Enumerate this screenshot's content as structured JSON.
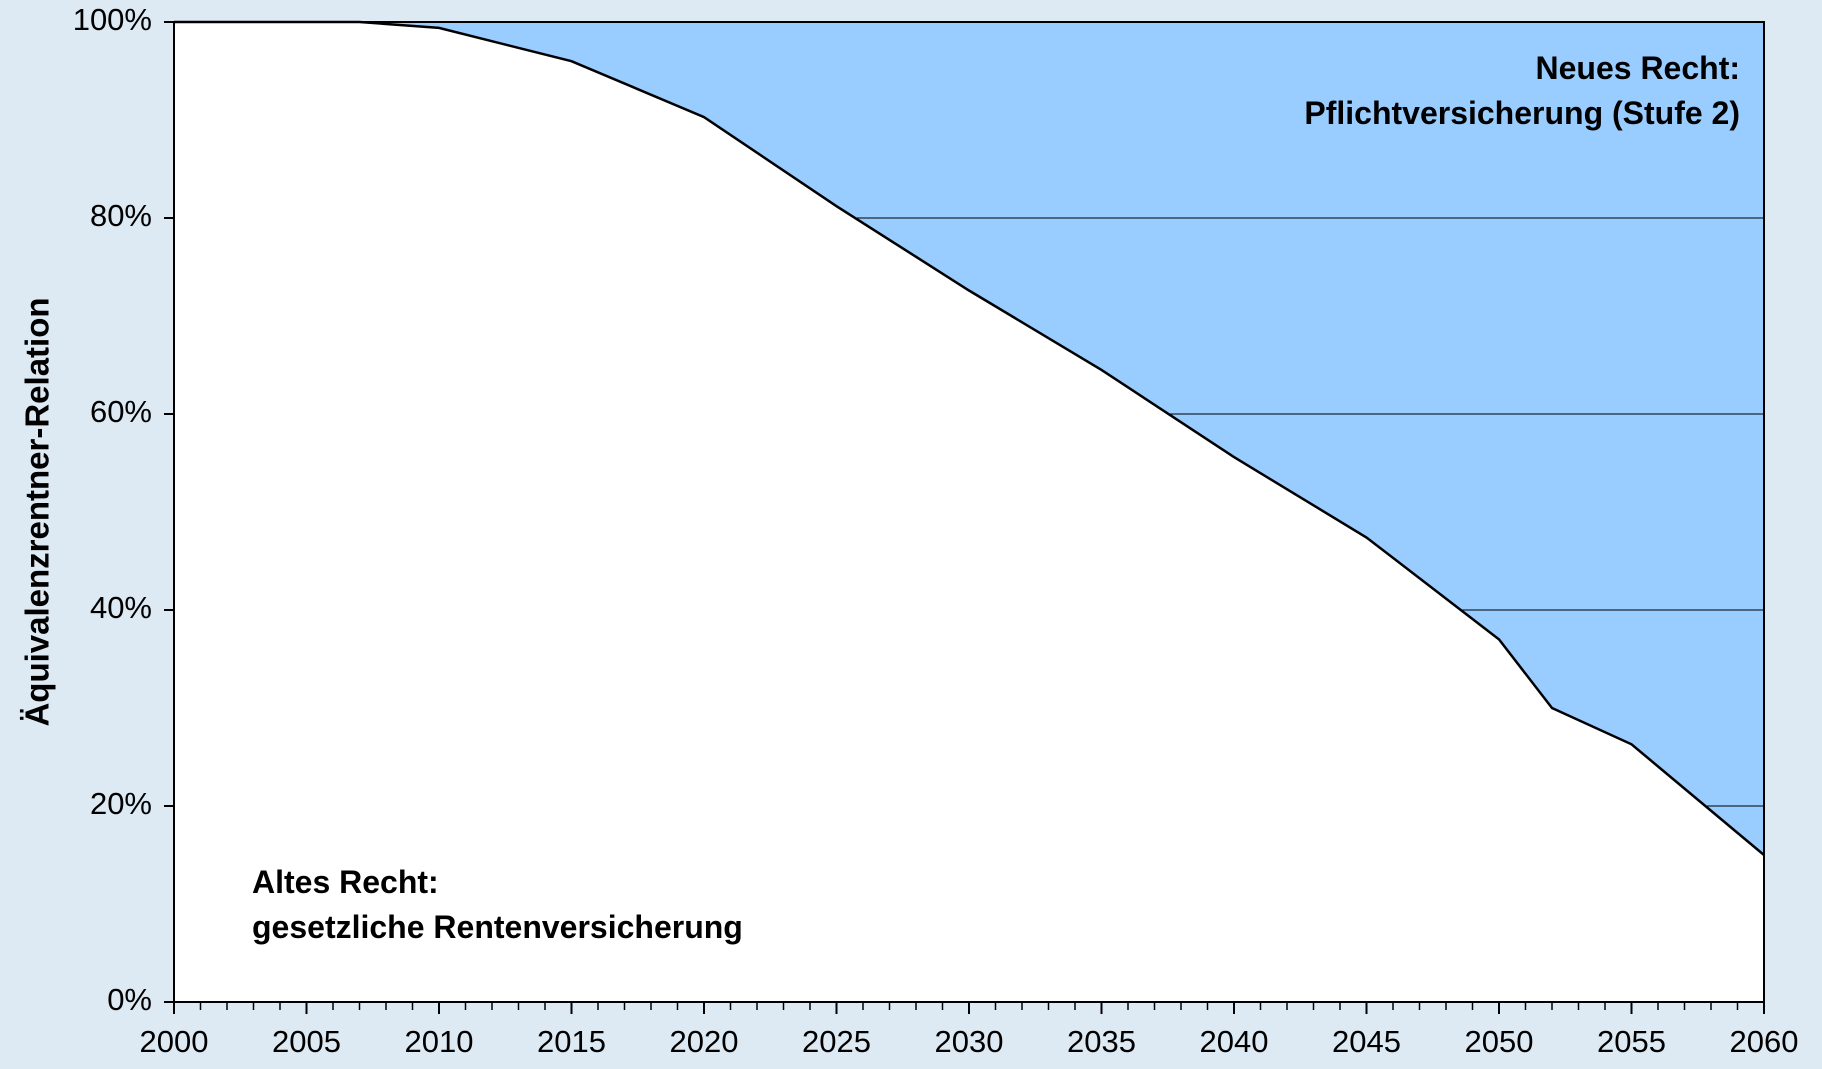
{
  "chart_data": {
    "type": "area",
    "y_label": "Äquivalenzrentner-Relation",
    "annotations": [
      {
        "lines": [
          "Neues Recht:",
          "Pflichtversicherung (Stufe 2)"
        ],
        "corner": "top-right"
      },
      {
        "lines": [
          "Altes Recht:",
          "gesetzliche Rentenversicherung"
        ],
        "corner": "bottom-left"
      }
    ],
    "x": [
      2000,
      2005,
      2007,
      2010,
      2015,
      2020,
      2025,
      2030,
      2035,
      2040,
      2045,
      2050,
      2052,
      2055,
      2060
    ],
    "values": [
      100,
      100,
      100,
      99.4,
      96,
      90.3,
      81.2,
      72.6,
      64.5,
      55.6,
      47.4,
      37,
      30,
      26.3,
      15
    ],
    "color": "#ffffff",
    "upper_color": "#99ccff",
    "line_color": "#000000",
    "xlim": [
      2000,
      2060
    ],
    "xticks": [
      2000,
      2005,
      2010,
      2015,
      2020,
      2025,
      2030,
      2035,
      2040,
      2045,
      2050,
      2055,
      2060
    ],
    "ylim": [
      0,
      100
    ],
    "yticks": [
      {
        "value": 0,
        "label": "0%"
      },
      {
        "value": 20,
        "label": "20%"
      },
      {
        "value": 40,
        "label": "40%"
      },
      {
        "value": 60,
        "label": "60%"
      },
      {
        "value": 80,
        "label": "80%"
      },
      {
        "value": 100,
        "label": "100%"
      }
    ],
    "grid": true
  }
}
